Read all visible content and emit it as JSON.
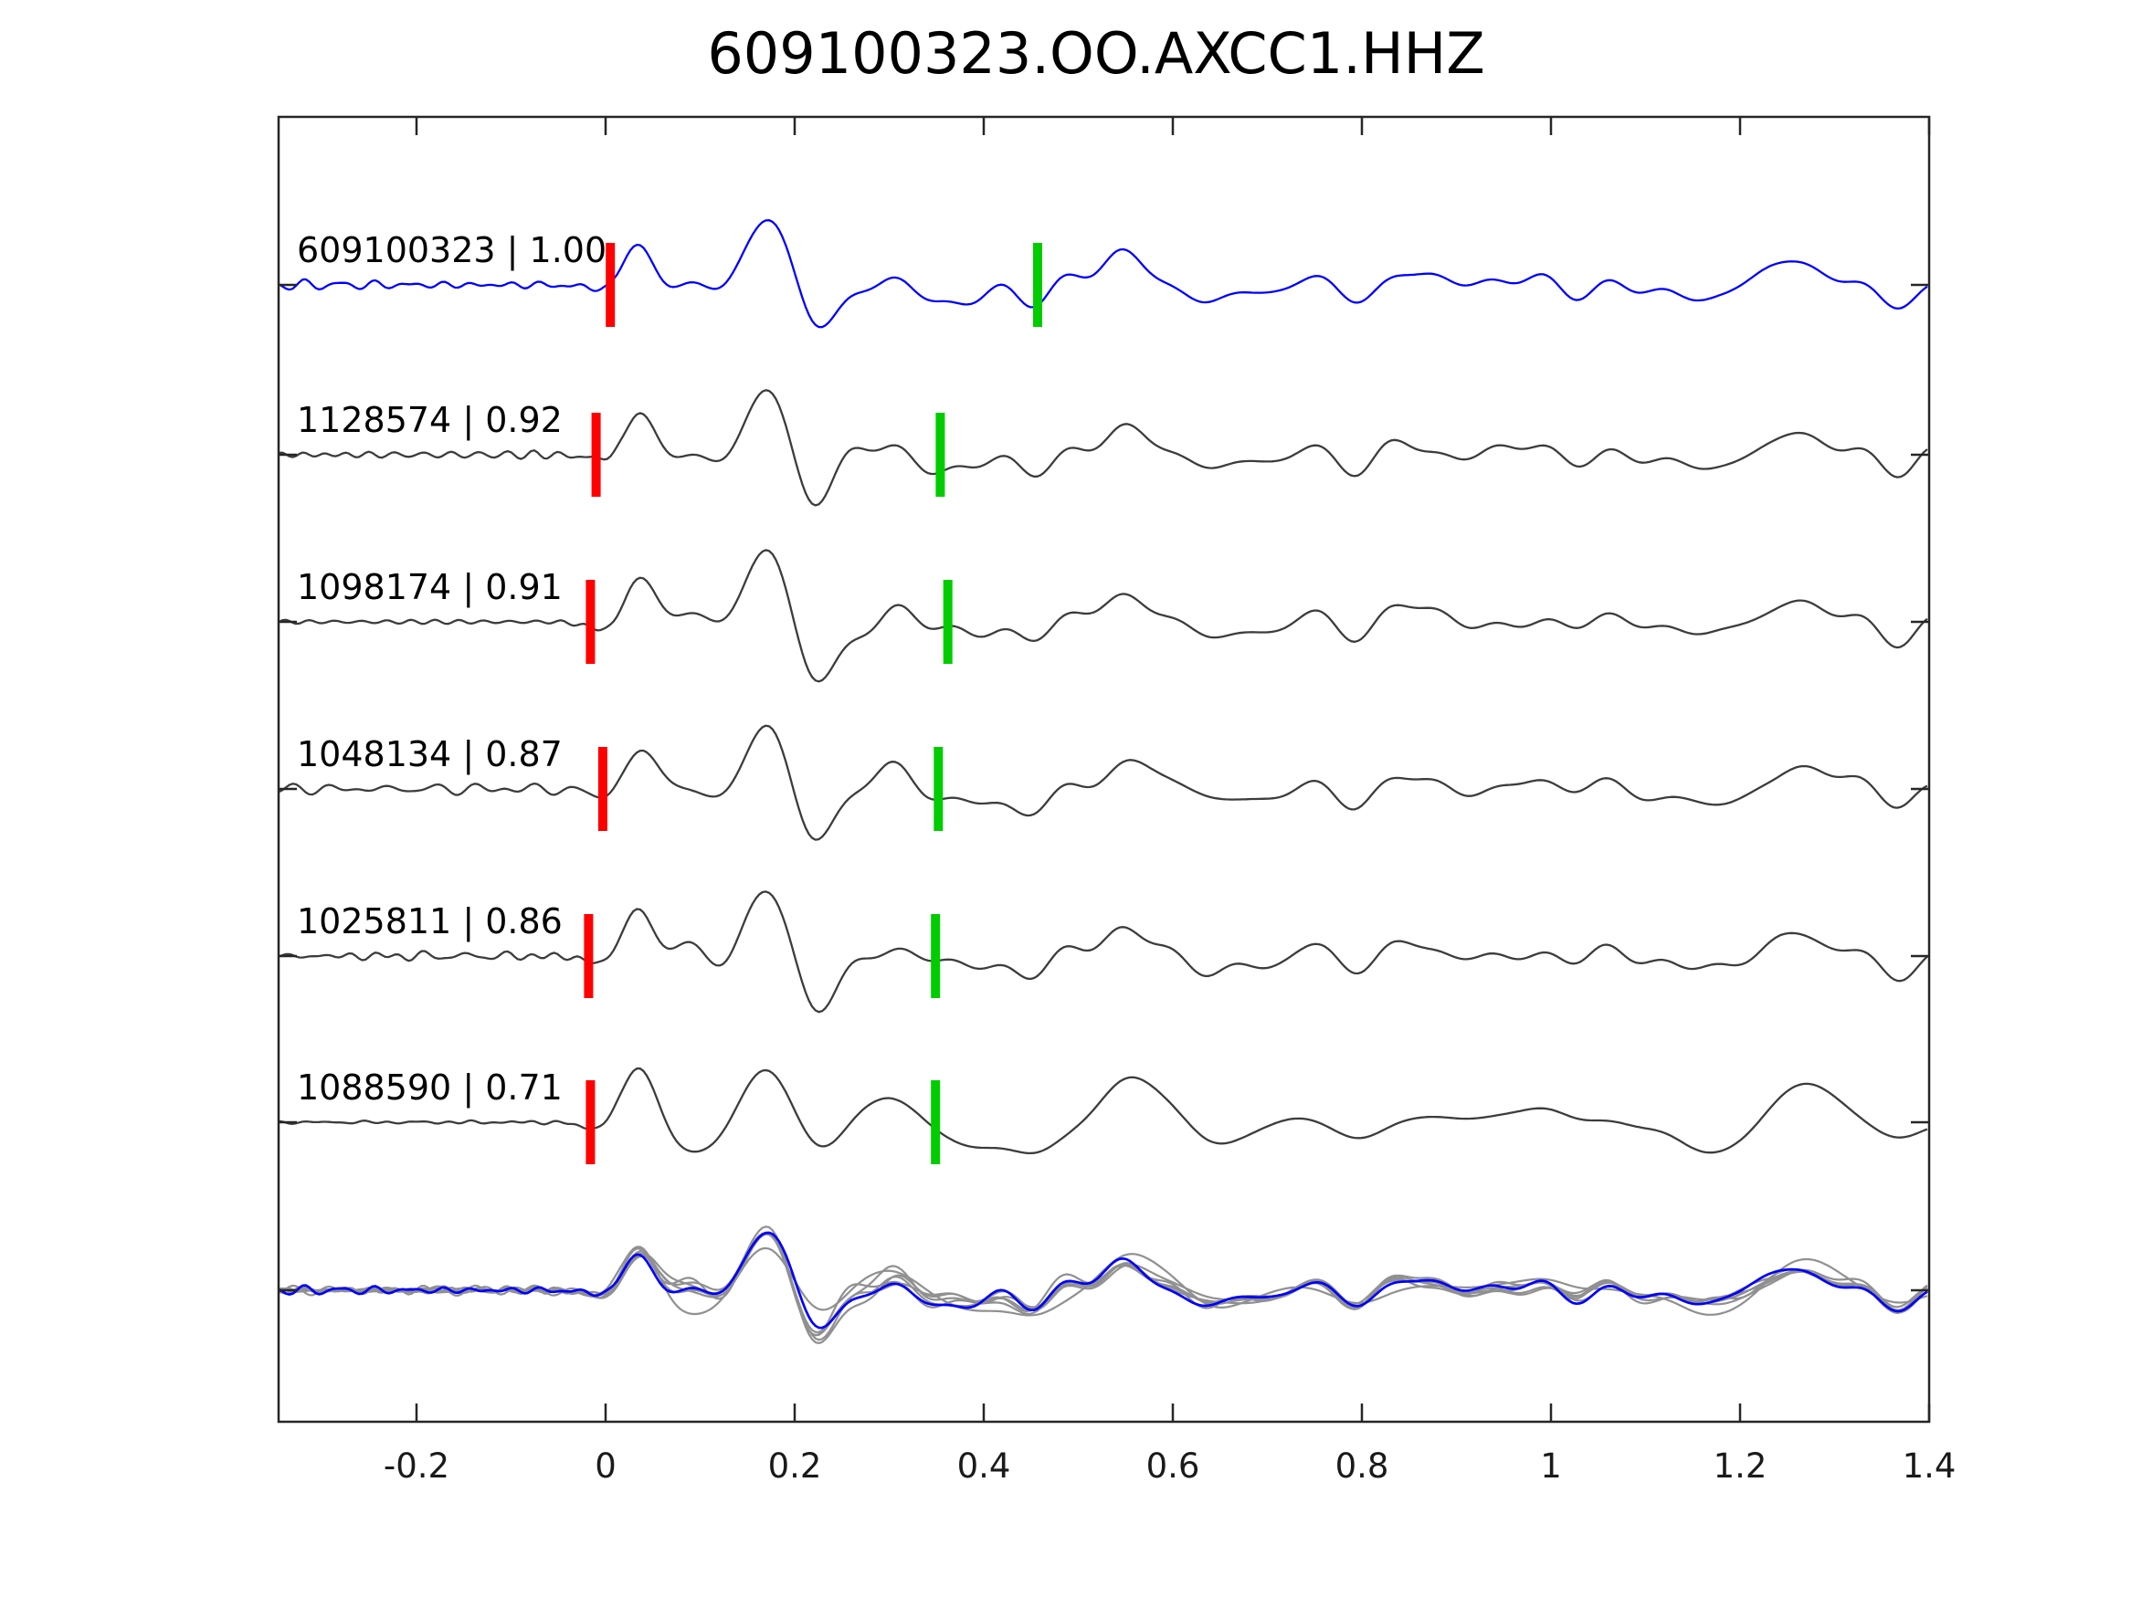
{
  "title": "609100323.OO.AXCC1.HHZ",
  "chart_data": {
    "type": "line",
    "subtype": "seismogram-template-matching",
    "title": "609100323.OO.AXCC1.HHZ",
    "xlabel": "",
    "ylabel": "",
    "xlim": [
      -0.345,
      1.4
    ],
    "x_tick_values": [
      -0.2,
      0,
      0.2,
      0.4,
      0.6,
      0.8,
      1,
      1.2,
      1.4
    ],
    "x_ticks": [
      "-0.2",
      "0",
      "0.2",
      "0.4",
      "0.6",
      "0.8",
      "1",
      "1.2",
      "1.4"
    ],
    "grid": false,
    "legend": null,
    "colors": {
      "template_trace": "#0000ff",
      "detection_trace": "#3c3c3c",
      "overlay_gray": "#909090",
      "pick_red": "#ff0000",
      "pick_green": "#00cc00",
      "axis": "#262626"
    },
    "traces": [
      {
        "id": "609100323",
        "correlation": "1.00",
        "label": "609100323 | 1.00",
        "color": "#0000ff",
        "red_pick_x": 0.005,
        "green_pick_x": 0.457
      },
      {
        "id": "1128574",
        "correlation": "0.92",
        "label": "1128574 | 0.92",
        "color": "#3c3c3c",
        "red_pick_x": -0.01,
        "green_pick_x": 0.354
      },
      {
        "id": "1098174",
        "correlation": "0.91",
        "label": "1098174 | 0.91",
        "color": "#3c3c3c",
        "red_pick_x": -0.016,
        "green_pick_x": 0.362
      },
      {
        "id": "1048134",
        "correlation": "0.87",
        "label": "1048134 | 0.87",
        "color": "#3c3c3c",
        "red_pick_x": -0.003,
        "green_pick_x": 0.352
      },
      {
        "id": "1025811",
        "correlation": "0.86",
        "label": "1025811 | 0.86",
        "color": "#3c3c3c",
        "red_pick_x": -0.018,
        "green_pick_x": 0.349
      },
      {
        "id": "1088590",
        "correlation": "0.71",
        "label": "1088590 | 0.71",
        "color": "#3c3c3c",
        "red_pick_x": -0.016,
        "green_pick_x": 0.349
      }
    ],
    "overlay_row": {
      "description": "all detection waveforms (gray) overlaid with template waveform (blue)",
      "gray_color": "#909090",
      "template_color": "#0000ff"
    }
  }
}
